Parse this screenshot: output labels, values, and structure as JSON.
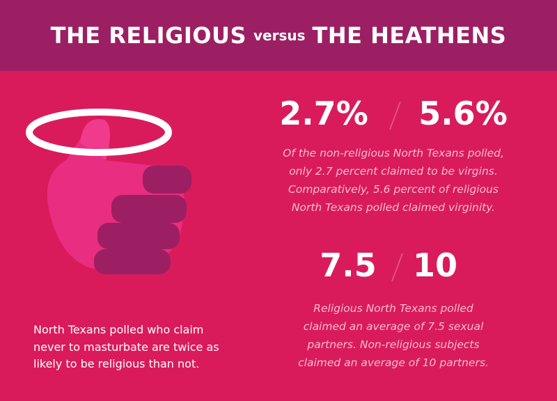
{
  "header": {
    "title_left": "THE RELIGIOUS",
    "title_middle": "versus",
    "title_right": "THE HEATHENS"
  },
  "virginity": {
    "non_religious": "2.7%",
    "religious": "5.6%",
    "lines": [
      "Of the non-religious North Texans polled,",
      "only 2.7 percent claimed to be virgins.",
      "Comparatively, 5.6 percent of religious",
      "North Texans polled claimed virginity."
    ]
  },
  "partners": {
    "religious": "7.5",
    "non_religious": "10",
    "lines": [
      "Religious North Texans polled",
      "claimed an average of 7.5 sexual",
      "partners. Non-religious subjects",
      "claimed an average of 10 partners."
    ]
  },
  "masturbation": {
    "lines": [
      "North Texans polled who claim",
      "never to masturbate are twice as",
      "likely to be religious than not."
    ]
  }
}
